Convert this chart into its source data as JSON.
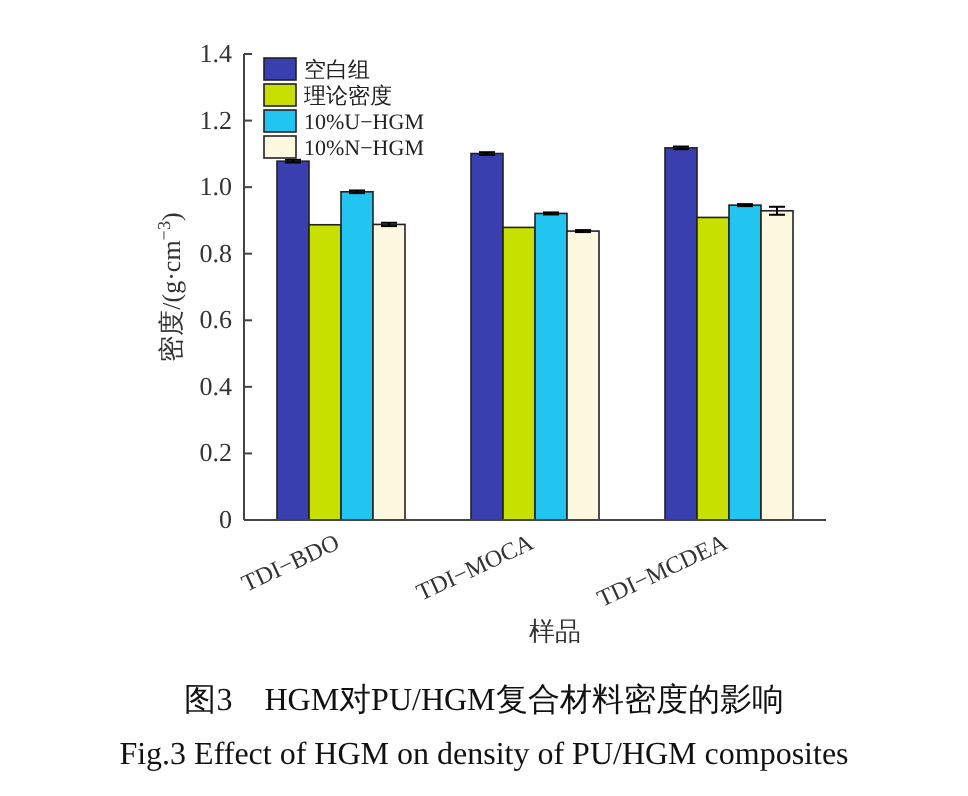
{
  "chart_data": {
    "type": "bar",
    "xlabel": "样品",
    "ylabel": "密度/(g·cm$^{−3}$)",
    "categories": [
      "TDI−BDO",
      "TDI−MOCA",
      "TDI−MCDEA"
    ],
    "series": [
      {
        "name": "空白组",
        "color": "#3a3fb0",
        "values": [
          1.078,
          1.101,
          1.118
        ],
        "errors": [
          0.004,
          0.004,
          0.004
        ]
      },
      {
        "name": "理论密度",
        "color": "#c8e000",
        "values": [
          0.887,
          0.879,
          0.909
        ]
      },
      {
        "name": "10%U−HGM",
        "color": "#22c4f0",
        "values": [
          0.986,
          0.921,
          0.946
        ],
        "errors": [
          0.004,
          0.003,
          0.003
        ]
      },
      {
        "name": "10%N−HGM",
        "color": "#fdf8e0",
        "values": [
          0.888,
          0.868,
          0.929
        ],
        "errors": [
          0.005,
          0.003,
          0.012
        ]
      }
    ],
    "ylim": [
      0,
      1.4
    ],
    "yticks": [
      0,
      0.2,
      0.4,
      0.6,
      0.8,
      {
        "value": 1,
        "label": "1.0"
      },
      1.2,
      1.4
    ],
    "legend": "top left",
    "grid": false,
    "annotations": [
      "图3　HGM对PU/HGM复合材料密度的影响",
      "Fig.3 Effect of HGM on density of PU/HGM composites"
    ]
  }
}
